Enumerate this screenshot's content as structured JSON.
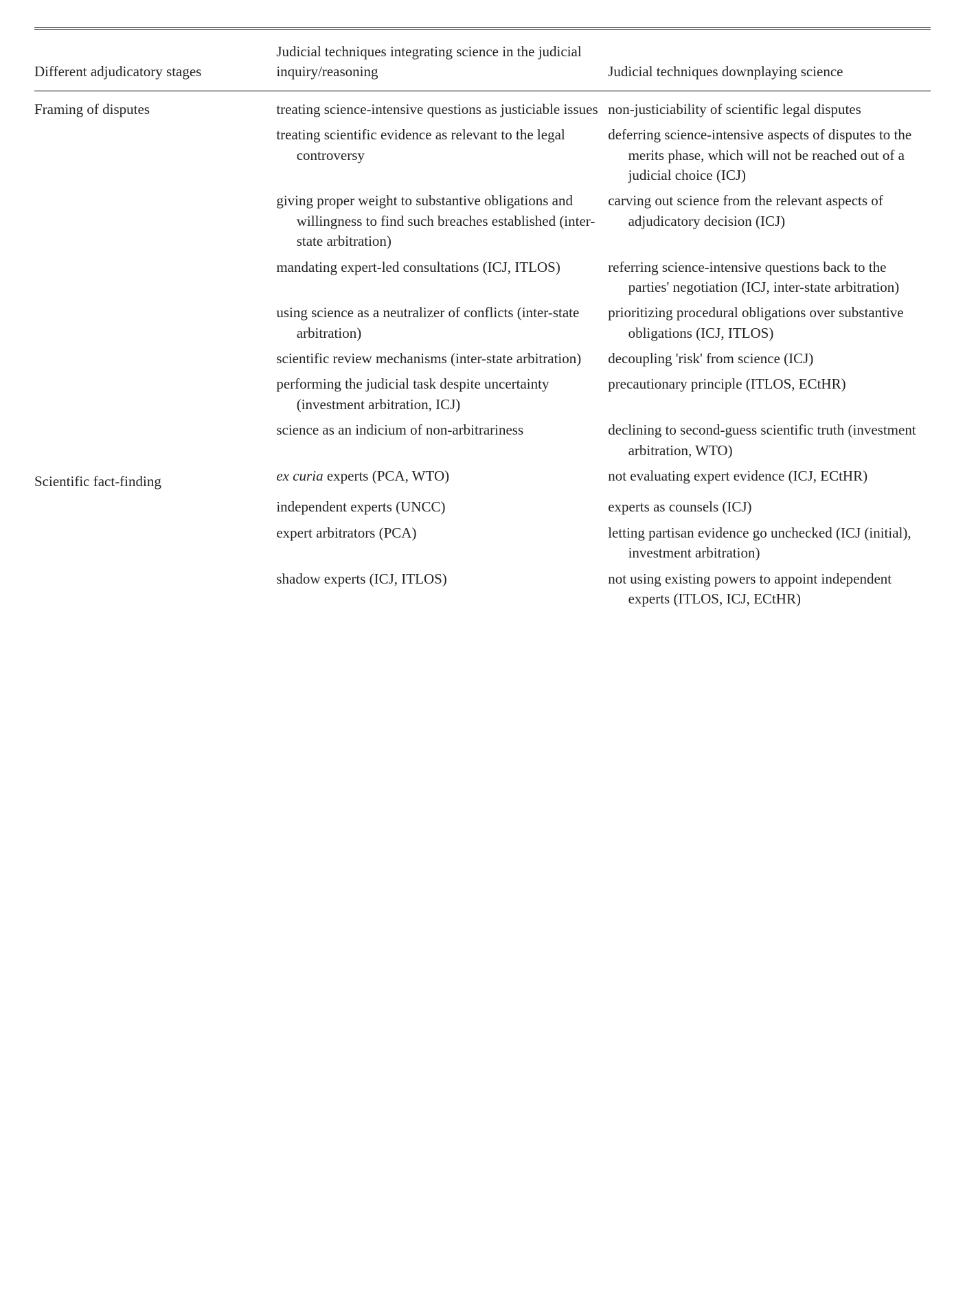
{
  "headers": {
    "col1": "Different adjudicatory stages",
    "col2": "Judicial techniques integrating science in the judicial inquiry/reasoning",
    "col3": "Judicial techniques downplaying science"
  },
  "stages": {
    "framing": "Framing of disputes",
    "factfinding": "Scientific fact-finding"
  },
  "rows": [
    {
      "stage_key": "framing",
      "c2": "treating science-intensive questions as justiciable issues",
      "c3": "non-justiciability of scientific legal disputes"
    },
    {
      "c2": "treating scientific evidence as relevant to the legal controversy",
      "c3": "deferring science-intensive aspects of disputes to the merits phase, which will not be reached out of a judicial choice (ICJ)"
    },
    {
      "c2": "giving proper weight to substantive obligations and willingness to find such breaches established (inter-state arbitration)",
      "c3": "carving out science from the relevant aspects of adjudicatory decision (ICJ)"
    },
    {
      "c2": "mandating expert-led consultations (ICJ, ITLOS)",
      "c3": "referring science-intensive questions back to the parties' negotiation (ICJ, inter-state arbitration)"
    },
    {
      "c2": "using science as a neutralizer of conflicts (inter-state arbitration)",
      "c3": "prioritizing procedural obligations over substantive obligations (ICJ, ITLOS)"
    },
    {
      "c2": "scientific review mechanisms (inter-state arbitration)",
      "c3": "decoupling 'risk' from science (ICJ)"
    },
    {
      "c2": "performing the judicial task despite uncertainty (investment arbitration, ICJ)",
      "c3": "precautionary principle (ITLOS, ECtHR)"
    },
    {
      "c2": "science as an indicium of non-arbitrariness",
      "c3": "declining to second-guess scientific truth (investment arbitration, WTO)"
    },
    {
      "stage_key": "factfinding",
      "c2_prefix_italic": "ex curia",
      "c2_suffix": " experts (PCA, WTO)",
      "c3": "not evaluating expert evidence (ICJ, ECtHR)"
    },
    {
      "c2": "independent experts (UNCC)",
      "c3": "experts as counsels (ICJ)"
    },
    {
      "c2": "expert arbitrators (PCA)",
      "c3": "letting partisan evidence go unchecked (ICJ (initial), investment arbitration)"
    },
    {
      "c2": "shadow experts (ICJ, ITLOS)",
      "c3": "not using existing powers to appoint independent experts (ITLOS, ICJ, ECtHR)"
    }
  ]
}
